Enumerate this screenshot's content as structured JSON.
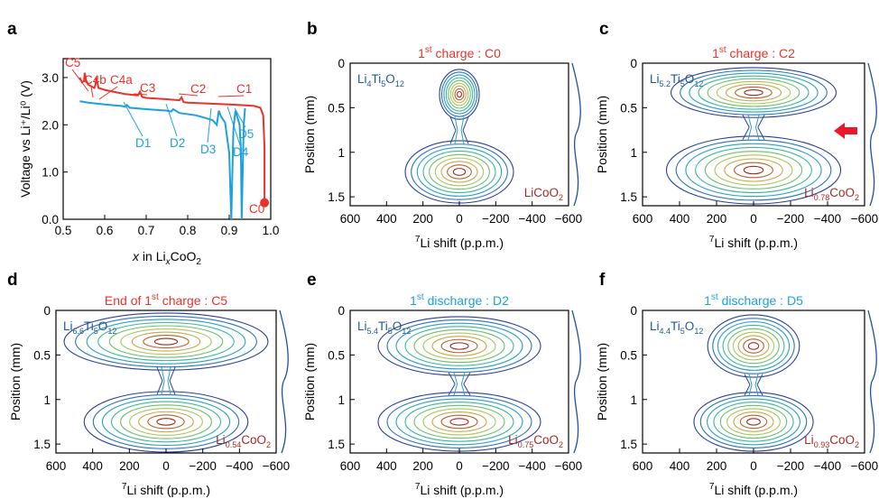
{
  "colors": {
    "charge": "#e8332b",
    "discharge": "#1fa0dd",
    "anode": "#1f5a98",
    "cathode": "#a32b25",
    "axis": "#000000",
    "arrow": "#e8192c",
    "contour_levels": [
      "#2b3f9a",
      "#2b74b8",
      "#2aa0c4",
      "#3bb89c",
      "#6cc06c",
      "#a8c75a",
      "#c9a64a",
      "#b8602e",
      "#a22a1e"
    ]
  },
  "panel_a": {
    "label": "a",
    "chart_data": {
      "type": "line",
      "xlabel_pre": "x",
      "xlabel_mid": " in Li",
      "xlabel_sub": "x",
      "xlabel_post": "CoO",
      "xlabel_sub2": "2",
      "ylabel": "Voltage vs Li⁺/Li⁰ (V)",
      "xlim": [
        0.5,
        1.0
      ],
      "ylim": [
        0.0,
        3.4
      ],
      "xticks": [
        "0.5",
        "0.6",
        "0.7",
        "0.8",
        "0.9",
        "1.0"
      ],
      "yticks": [
        "0.0",
        "1.0",
        "2.0",
        "3.0"
      ],
      "series": [
        {
          "role": "charge",
          "x": [
            0.985,
            0.985,
            0.982,
            0.975,
            0.96,
            0.94,
            0.9,
            0.85,
            0.8,
            0.79,
            0.785,
            0.78,
            0.75,
            0.7,
            0.69,
            0.685,
            0.68,
            0.65,
            0.62,
            0.6,
            0.585,
            0.58,
            0.578,
            0.575,
            0.56,
            0.555,
            0.552,
            0.55,
            0.545,
            0.54
          ],
          "y": [
            0.35,
            1.5,
            2.2,
            2.36,
            2.4,
            2.41,
            2.43,
            2.45,
            2.47,
            2.48,
            2.58,
            2.52,
            2.54,
            2.57,
            2.59,
            2.7,
            2.62,
            2.65,
            2.7,
            2.74,
            2.78,
            3.0,
            2.85,
            2.78,
            2.85,
            2.95,
            3.1,
            2.92,
            2.9,
            3.0
          ]
        },
        {
          "role": "discharge",
          "x": [
            0.54,
            0.56,
            0.6,
            0.64,
            0.65,
            0.653,
            0.66,
            0.7,
            0.75,
            0.76,
            0.765,
            0.78,
            0.82,
            0.86,
            0.87,
            0.875,
            0.88,
            0.89,
            0.9,
            0.905,
            0.91,
            0.915,
            0.92,
            0.925,
            0.928,
            0.93,
            0.935,
            0.938
          ],
          "y": [
            2.5,
            2.47,
            2.43,
            2.4,
            2.38,
            2.42,
            2.36,
            2.33,
            2.3,
            2.28,
            2.33,
            2.25,
            2.2,
            2.1,
            2.0,
            2.3,
            2.18,
            2.05,
            1.4,
            0.0,
            1.9,
            2.3,
            2.15,
            2.0,
            1.5,
            0.0,
            2.0,
            2.35
          ]
        }
      ],
      "marker": {
        "x": 0.985,
        "y": 0.35
      },
      "annotations": [
        "C5",
        "C4b",
        "C4a",
        "C3",
        "C2",
        "C1",
        "C0",
        "D1",
        "D2",
        "D3",
        "D4",
        "D5"
      ]
    }
  },
  "nmr_panels": [
    {
      "label": "b",
      "title_pre": "1",
      "title_sup": "st",
      "title_post": " charge : C0",
      "title_role": "charge",
      "anode_main": "Li",
      "anode_sub1": "4",
      "anode_mid": "Ti",
      "anode_sub2": "5",
      "anode_end": "O",
      "anode_sub3": "12",
      "cathode_main": "LiCoO",
      "cathode_sub": "2",
      "cathode_sub_pre": ""
    },
    {
      "label": "c",
      "title_pre": "1",
      "title_sup": "st",
      "title_post": " charge : C2",
      "title_role": "charge",
      "anode_main": "Li",
      "anode_sub1": "5.2",
      "anode_mid": "Ti",
      "anode_sub2": "5",
      "anode_end": "O",
      "anode_sub3": "12",
      "cathode_main": "Li",
      "cathode_sub_pre": "0.78",
      "cathode_sub": "2",
      "arrow": true
    },
    {
      "label": "d",
      "title_pre": "End of 1",
      "title_sup": "st",
      "title_post": " charge : C5",
      "title_role": "charge",
      "anode_main": "Li",
      "anode_sub1": "6.6",
      "anode_mid": "Ti",
      "anode_sub2": "5",
      "anode_end": "O",
      "anode_sub3": "12",
      "cathode_main": "Li",
      "cathode_sub_pre": "0.54",
      "cathode_sub": "2"
    },
    {
      "label": "e",
      "title_pre": "1",
      "title_sup": "st",
      "title_post": " discharge : D2",
      "title_role": "discharge",
      "anode_main": "Li",
      "anode_sub1": "5.4",
      "anode_mid": "Ti",
      "anode_sub2": "5",
      "anode_end": "O",
      "anode_sub3": "12",
      "cathode_main": "Li",
      "cathode_sub_pre": "0.75",
      "cathode_sub": "2"
    },
    {
      "label": "f",
      "title_pre": "1",
      "title_sup": "st",
      "title_post": " discharge : D5",
      "title_role": "discharge",
      "anode_main": "Li",
      "anode_sub1": "4.4",
      "anode_mid": "Ti",
      "anode_sub2": "5",
      "anode_end": "O",
      "anode_sub3": "12",
      "cathode_main": "Li",
      "cathode_sub_pre": "0.93",
      "cathode_sub": "2"
    }
  ],
  "nmr_axes": {
    "xticks": [
      "600",
      "400",
      "200",
      "0",
      "−200",
      "−400",
      "−600"
    ],
    "xtick_values": [
      600,
      400,
      200,
      0,
      -200,
      -400,
      -600
    ],
    "yticks": [
      "0",
      "0.5",
      "1",
      "1.5"
    ],
    "ytick_values": [
      0,
      0.5,
      1,
      1.5
    ],
    "xlabel_sup": "7",
    "xlabel": "Li shift (p.p.m.)",
    "ylabel": "Position (mm)",
    "xlim": [
      600,
      -600
    ],
    "ylim": [
      0,
      1.6
    ]
  }
}
